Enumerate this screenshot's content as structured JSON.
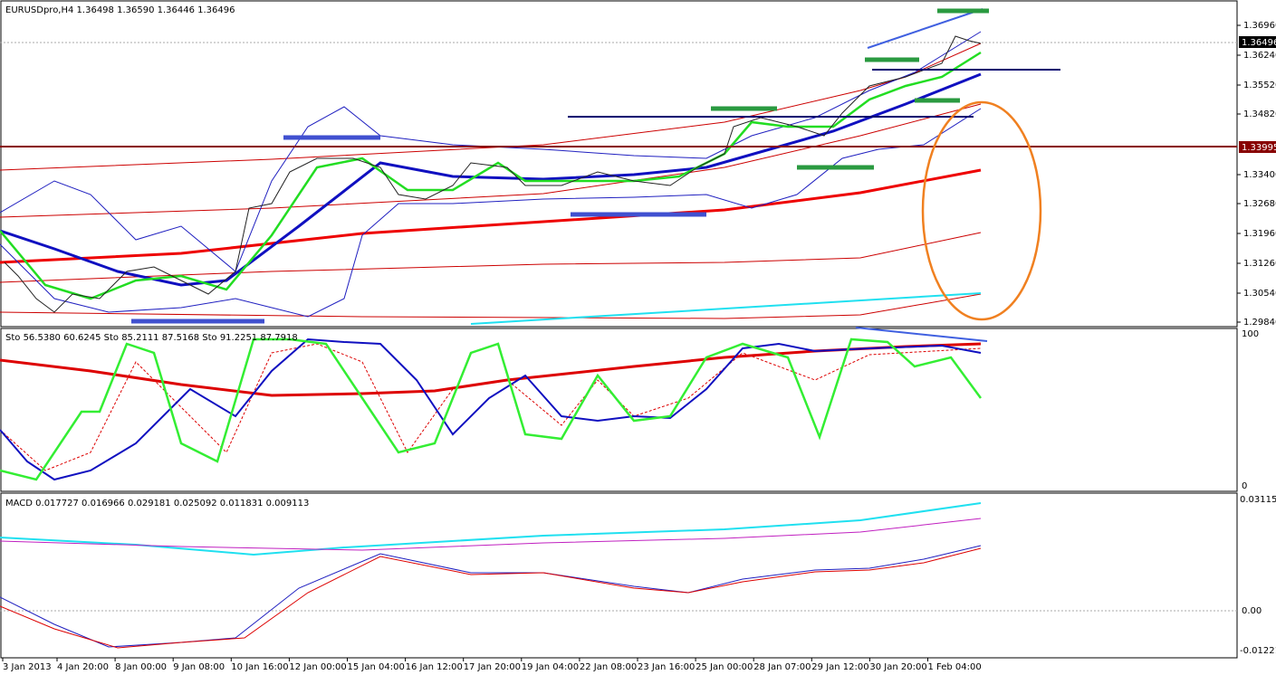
{
  "main": {
    "header": "EURUSDpro,H4  1.36498 1.36590 1.36446 1.36496",
    "price_labels": [
      "1.36960",
      "1.36240",
      "1.35520",
      "1.34820",
      "1.33400",
      "1.32680",
      "1.31960",
      "1.31260",
      "1.30540",
      "1.29840"
    ],
    "current_price": "1.36496",
    "level_price": "1.33995"
  },
  "stochastic": {
    "header": "Sto 56.5380 60.6245   Sto 85.2111 87.5168   Sto 91.2251 87.7918",
    "scale": [
      "100",
      "0"
    ]
  },
  "macd": {
    "header": "MACD 0.017727 0.016966 0.029181 0.025092 0.011831 0.009113",
    "scale": [
      "0.031152",
      "0.00",
      "-0.01221"
    ]
  },
  "time_axis": [
    "3 Jan 2013",
    "4 Jan 20:00",
    "8 Jan 00:00",
    "9 Jan 08:00",
    "10 Jan 16:00",
    "12 Jan 00:00",
    "15 Jan 04:00",
    "16 Jan 12:00",
    "17 Jan 20:00",
    "19 Jan 04:00",
    "22 Jan 08:00",
    "23 Jan 16:00",
    "25 Jan 00:00",
    "28 Jan 07:00",
    "29 Jan 12:00",
    "30 Jan 20:00",
    "1 Feb 04:00"
  ]
}
